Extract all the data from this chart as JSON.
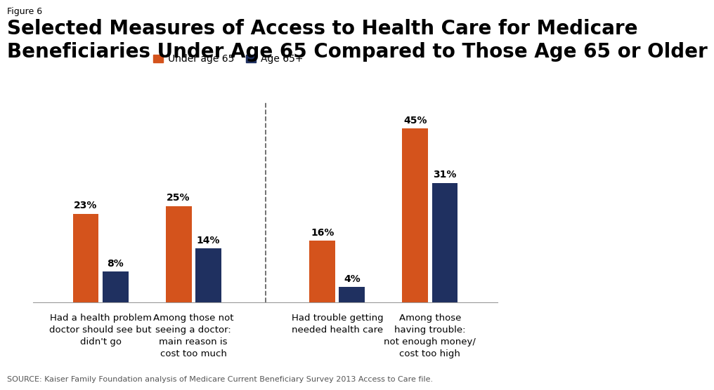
{
  "figure_label": "Figure 6",
  "title_line1": "Selected Measures of Access to Health Care for Medicare",
  "title_line2": "Beneficiaries Under Age 65 Compared to Those Age 65 or Older",
  "source": "SOURCE: Kaiser Family Foundation analysis of Medicare Current Beneficiary Survey 2013 Access to Care file.",
  "categories": [
    "Had a health problem\ndoctor should see but\ndidn't go",
    "Among those not\nseeing a doctor:\nmain reason is\ncost too much",
    "Had trouble getting\nneeded health care",
    "Among those\nhaving trouble:\nnot enough money/\ncost too high"
  ],
  "under65_values": [
    23,
    25,
    16,
    45
  ],
  "age65plus_values": [
    8,
    14,
    4,
    31
  ],
  "orange_color": "#D4531C",
  "navy_color": "#1F3060",
  "legend_labels": [
    "Under age 65",
    "Age 65+"
  ],
  "bar_width": 0.28,
  "ylim": [
    0,
    52
  ],
  "background_color": "#ffffff",
  "title_fontsize": 20,
  "fig_label_fontsize": 9,
  "label_fontsize": 9.5,
  "value_fontsize": 10,
  "source_fontsize": 8,
  "legend_fontsize": 10
}
